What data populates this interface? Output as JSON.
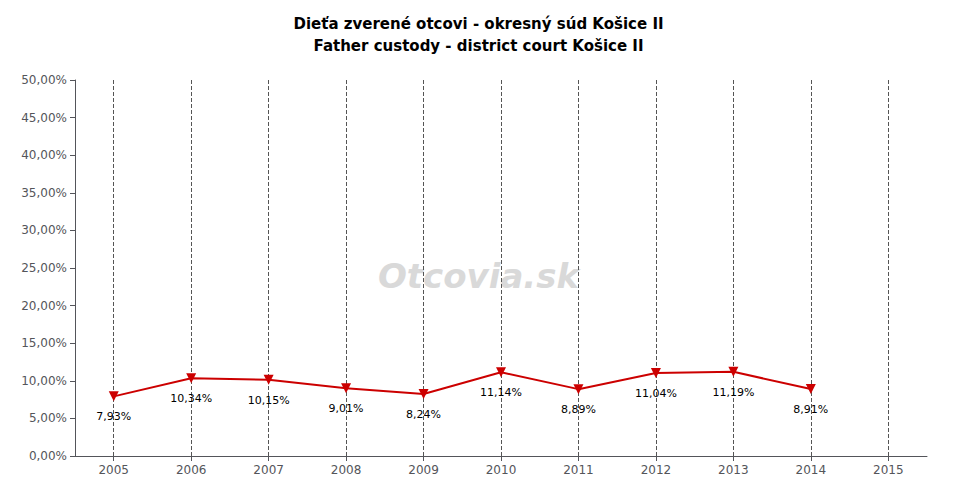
{
  "chart_data": {
    "type": "line",
    "title": "Dieťa zverené otcovi - okresný súd Košice II",
    "subtitle": "Father custody - district court Košice II",
    "x": [
      2005,
      2006,
      2007,
      2008,
      2009,
      2010,
      2011,
      2012,
      2013,
      2014
    ],
    "values": [
      0.0793,
      0.1034,
      0.1015,
      0.0901,
      0.0824,
      0.1114,
      0.0889,
      0.1104,
      0.1119,
      0.0891
    ],
    "value_labels": [
      "7,93%",
      "10,34%",
      "10,15%",
      "9,01%",
      "8,24%",
      "11,14%",
      "8,89%",
      "11,04%",
      "11,19%",
      "8,91%"
    ],
    "data_labels": true,
    "color": "#cc0000",
    "marker": "triangle_down",
    "xlim": [
      2004.5,
      2015.5
    ],
    "xticks": [
      2005,
      2006,
      2007,
      2008,
      2009,
      2010,
      2011,
      2012,
      2013,
      2014,
      2015
    ],
    "ylim": [
      0.0,
      0.5
    ],
    "yticks": [
      {
        "value": 0.0,
        "label": "0,00%"
      },
      {
        "value": 0.05,
        "label": "5,00%"
      },
      {
        "value": 0.1,
        "label": "10,00%"
      },
      {
        "value": 0.15,
        "label": "15,00%"
      },
      {
        "value": 0.2,
        "label": "20,00%"
      },
      {
        "value": 0.25,
        "label": "25,00%"
      },
      {
        "value": 0.3,
        "label": "30,00%"
      },
      {
        "value": 0.35,
        "label": "35,00%"
      },
      {
        "value": 0.4,
        "label": "40,00%"
      },
      {
        "value": 0.45,
        "label": "45,00%"
      },
      {
        "value": 0.5,
        "label": "50,00%"
      }
    ],
    "grid": "x",
    "annotations": [
      "Otcovia.sk"
    ]
  }
}
